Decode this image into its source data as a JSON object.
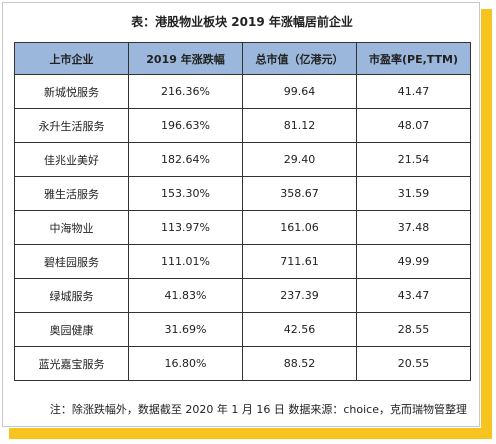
{
  "title": "表：港股物业板块 2019 年涨幅居前企业",
  "headers": [
    "上市企业",
    "2019 年涨跌幅",
    "总市值（亿港元）",
    "市盈率(PE,TTM)"
  ],
  "rows": [
    [
      "新城悦服务",
      "216.36%",
      "99.64",
      "41.47"
    ],
    [
      "永升生活服务",
      "196.63%",
      "81.12",
      "48.07"
    ],
    [
      "佳兆业美好",
      "182.64%",
      "29.40",
      "21.54"
    ],
    [
      "雅生活服务",
      "153.30%",
      "358.67",
      "31.59"
    ],
    [
      "中海物业",
      "113.97%",
      "161.06",
      "37.48"
    ],
    [
      "碧桂园服务",
      "111.01%",
      "711.61",
      "49.99"
    ],
    [
      "绿城服务",
      "41.83%",
      "237.39",
      "43.47"
    ],
    [
      "奥园健康",
      "31.69%",
      "42.56",
      "28.55"
    ],
    [
      "蓝光嘉宝服务",
      "16.80%",
      "88.52",
      "20.55"
    ]
  ],
  "note": "注：除涨跌幅外，数据截至 2020 年 1 月 16 日  数据来源：choice，克而瑞物管整理",
  "colors": {
    "header_bg": "#9bb7dc",
    "accent": "#f7c31e"
  }
}
